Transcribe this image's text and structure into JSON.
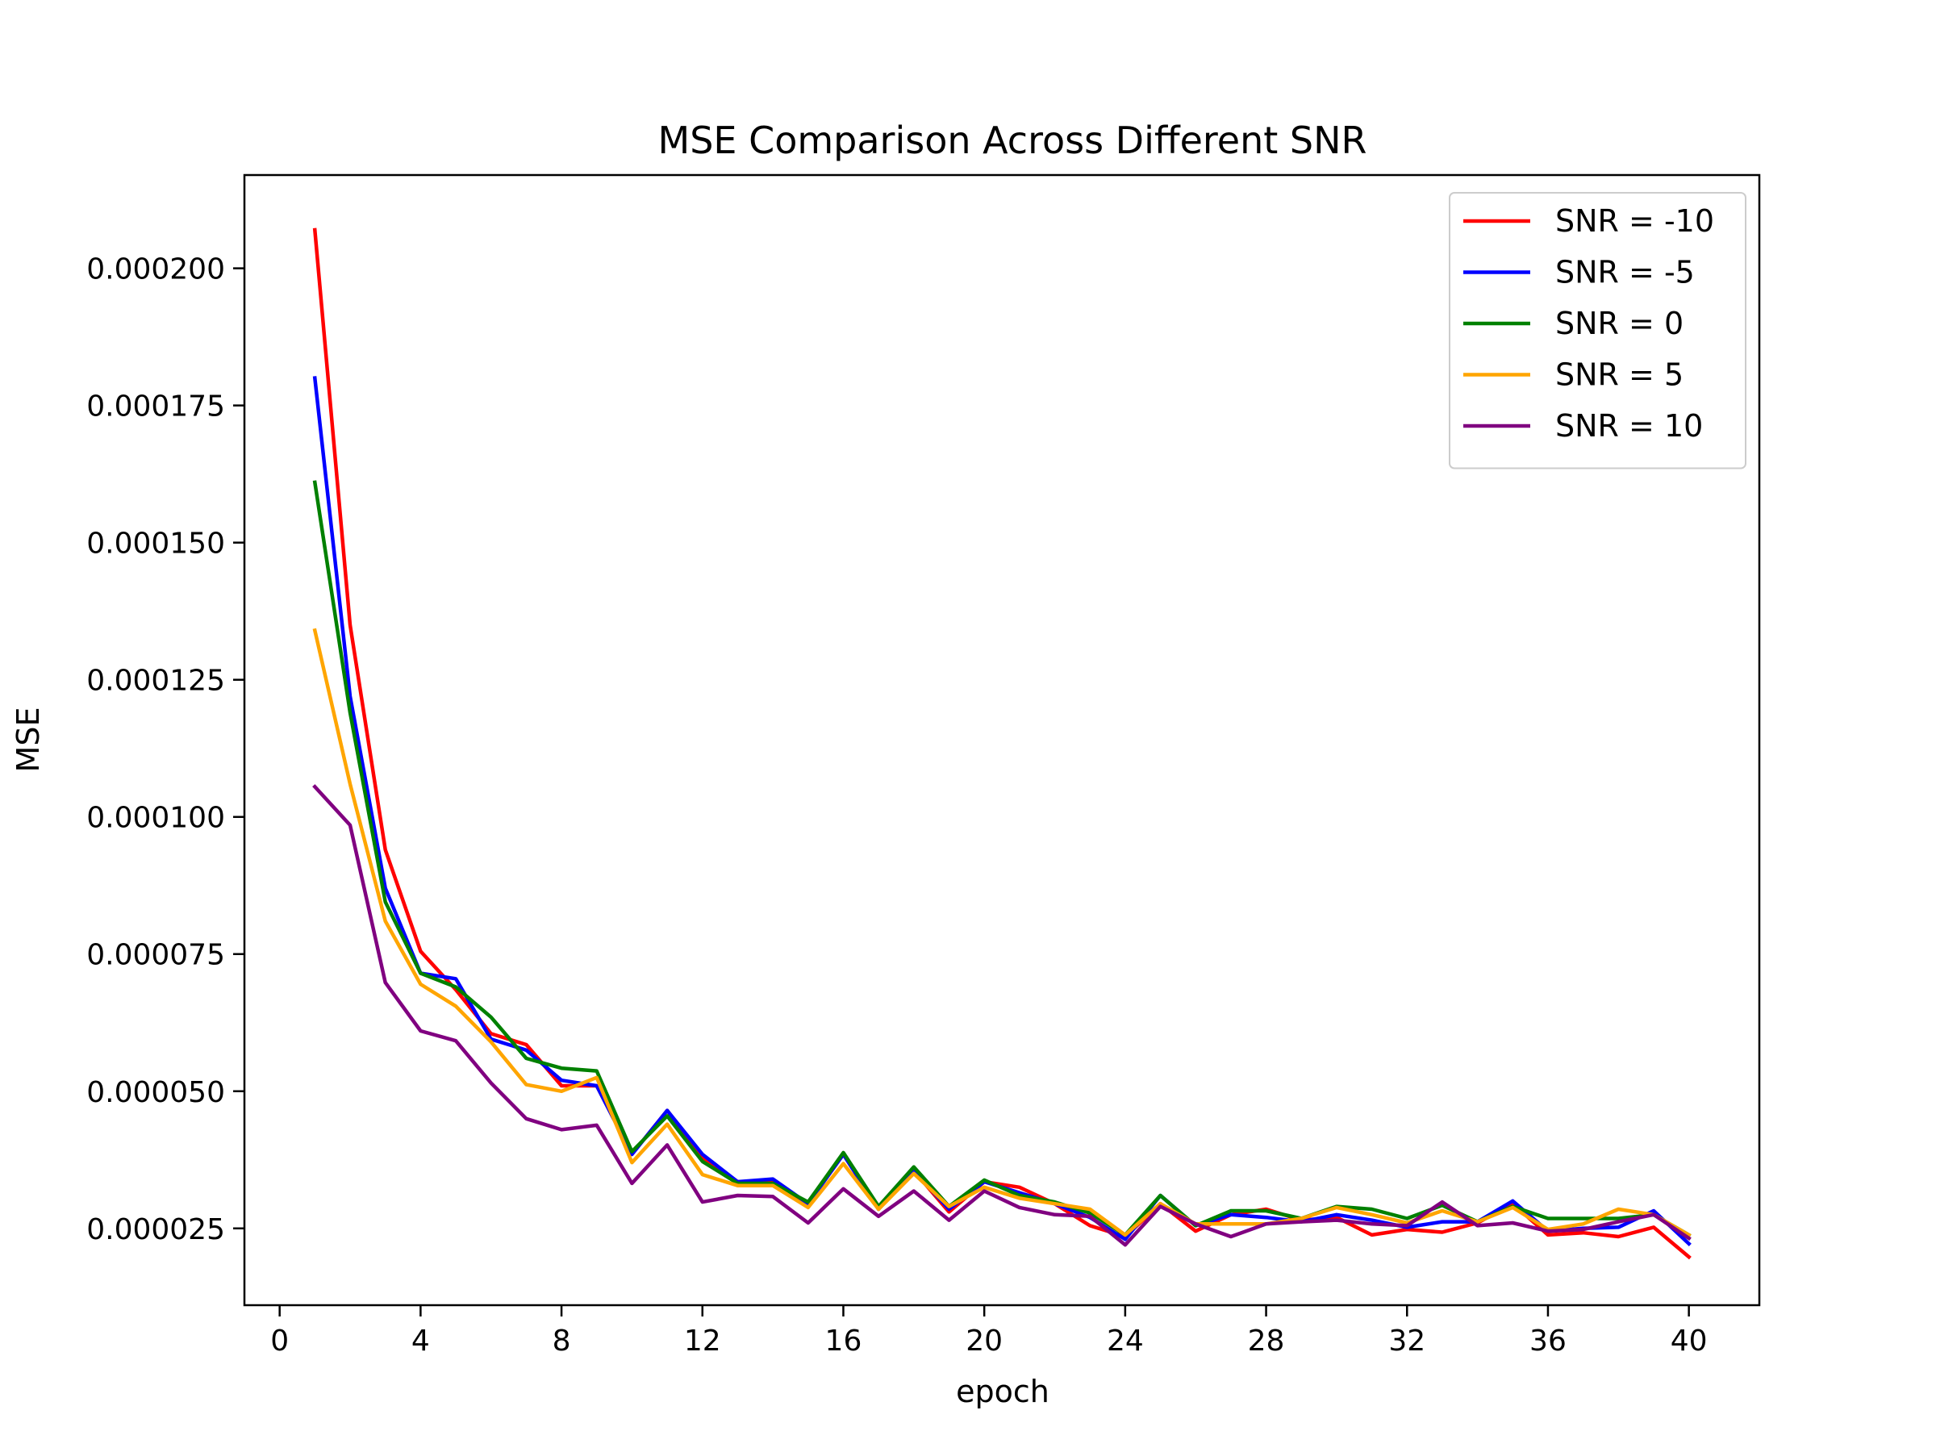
{
  "chart_data": {
    "type": "line",
    "title": "MSE Comparison Across Different SNR",
    "xlabel": "epoch",
    "ylabel": "MSE",
    "xlim": [
      -1,
      42
    ],
    "ylim": [
      1.1e-05,
      0.000217
    ],
    "xticks": [
      0,
      4,
      8,
      12,
      16,
      20,
      24,
      28,
      32,
      36,
      40
    ],
    "xtick_labels": [
      "0",
      "4",
      "8",
      "12",
      "16",
      "20",
      "24",
      "28",
      "32",
      "36",
      "40"
    ],
    "yticks": [
      2.5e-05,
      5e-05,
      7.5e-05,
      0.0001,
      0.000125,
      0.00015,
      0.000175,
      0.0002
    ],
    "ytick_labels": [
      "0.000025",
      "0.000050",
      "0.000075",
      "0.000100",
      "0.000125",
      "0.000150",
      "0.000175",
      "0.000200"
    ],
    "grid": false,
    "legend_position": "top-right",
    "x": [
      1,
      2,
      3,
      4,
      5,
      6,
      7,
      8,
      9,
      10,
      11,
      12,
      13,
      14,
      15,
      16,
      17,
      18,
      19,
      20,
      21,
      22,
      23,
      24,
      25,
      26,
      27,
      28,
      29,
      30,
      31,
      32,
      33,
      34,
      35,
      36,
      37,
      38,
      39,
      40
    ],
    "series": [
      {
        "name": "SNR = -10",
        "color": "#ff0000",
        "values": [
          0.000207,
          0.000135,
          9.4e-05,
          7.55e-05,
          6.85e-05,
          6.05e-05,
          5.85e-05,
          5.1e-05,
          5.1e-05,
          3.85e-05,
          4.65e-05,
          3.8e-05,
          3.35e-05,
          3.35e-05,
          2.95e-05,
          3.85e-05,
          2.85e-05,
          3.55e-05,
          2.8e-05,
          3.35e-05,
          3.25e-05,
          2.95e-05,
          2.55e-05,
          2.35e-05,
          2.95e-05,
          2.45e-05,
          2.75e-05,
          2.85e-05,
          2.65e-05,
          2.7e-05,
          2.38e-05,
          2.48e-05,
          2.43e-05,
          2.6e-05,
          2.95e-05,
          2.38e-05,
          2.42e-05,
          2.35e-05,
          2.52e-05,
          1.98e-05
        ]
      },
      {
        "name": "SNR = -5",
        "color": "#0000ff",
        "values": [
          0.00018,
          0.000122,
          8.7e-05,
          7.15e-05,
          7.05e-05,
          5.95e-05,
          5.75e-05,
          5.2e-05,
          5.1e-05,
          3.85e-05,
          4.65e-05,
          3.85e-05,
          3.35e-05,
          3.4e-05,
          2.95e-05,
          3.85e-05,
          2.85e-05,
          3.55e-05,
          2.85e-05,
          3.35e-05,
          3.15e-05,
          2.95e-05,
          2.7e-05,
          2.3e-05,
          3.1e-05,
          2.55e-05,
          2.75e-05,
          2.7e-05,
          2.62e-05,
          2.75e-05,
          2.65e-05,
          2.52e-05,
          2.62e-05,
          2.62e-05,
          3e-05,
          2.45e-05,
          2.5e-05,
          2.52e-05,
          2.82e-05,
          2.22e-05
        ]
      },
      {
        "name": "SNR = 0",
        "color": "#008000",
        "values": [
          0.000161,
          0.000119,
          8.45e-05,
          7.15e-05,
          6.9e-05,
          6.35e-05,
          5.6e-05,
          5.42e-05,
          5.37e-05,
          3.9e-05,
          4.55e-05,
          3.72e-05,
          3.32e-05,
          3.32e-05,
          2.98e-05,
          3.88e-05,
          2.9e-05,
          3.62e-05,
          2.9e-05,
          3.38e-05,
          3.1e-05,
          2.98e-05,
          2.78e-05,
          2.38e-05,
          3.1e-05,
          2.55e-05,
          2.82e-05,
          2.82e-05,
          2.68e-05,
          2.9e-05,
          2.85e-05,
          2.68e-05,
          2.92e-05,
          2.62e-05,
          2.9e-05,
          2.68e-05,
          2.68e-05,
          2.68e-05,
          2.75e-05,
          2.38e-05
        ]
      },
      {
        "name": "SNR = 5",
        "color": "#ffa500",
        "values": [
          0.000134,
          0.000106,
          8.1e-05,
          6.95e-05,
          6.55e-05,
          5.9e-05,
          5.12e-05,
          5e-05,
          5.25e-05,
          3.7e-05,
          4.4e-05,
          3.48e-05,
          3.28e-05,
          3.28e-05,
          2.88e-05,
          3.68e-05,
          2.85e-05,
          3.5e-05,
          2.9e-05,
          3.25e-05,
          3.05e-05,
          2.95e-05,
          2.85e-05,
          2.38e-05,
          2.95e-05,
          2.58e-05,
          2.58e-05,
          2.58e-05,
          2.68e-05,
          2.88e-05,
          2.75e-05,
          2.6e-05,
          2.82e-05,
          2.62e-05,
          2.88e-05,
          2.48e-05,
          2.58e-05,
          2.85e-05,
          2.75e-05,
          2.38e-05
        ]
      },
      {
        "name": "SNR = 10",
        "color": "#800080",
        "values": [
          0.0001055,
          9.85e-05,
          6.98e-05,
          6.1e-05,
          5.92e-05,
          5.15e-05,
          4.5e-05,
          4.3e-05,
          4.38e-05,
          3.32e-05,
          4.02e-05,
          2.98e-05,
          3.1e-05,
          3.08e-05,
          2.6e-05,
          3.22e-05,
          2.72e-05,
          3.18e-05,
          2.65e-05,
          3.18e-05,
          2.88e-05,
          2.75e-05,
          2.72e-05,
          2.2e-05,
          2.9e-05,
          2.58e-05,
          2.35e-05,
          2.58e-05,
          2.62e-05,
          2.65e-05,
          2.58e-05,
          2.55e-05,
          2.98e-05,
          2.55e-05,
          2.6e-05,
          2.45e-05,
          2.48e-05,
          2.62e-05,
          2.75e-05,
          2.32e-05
        ]
      }
    ]
  }
}
